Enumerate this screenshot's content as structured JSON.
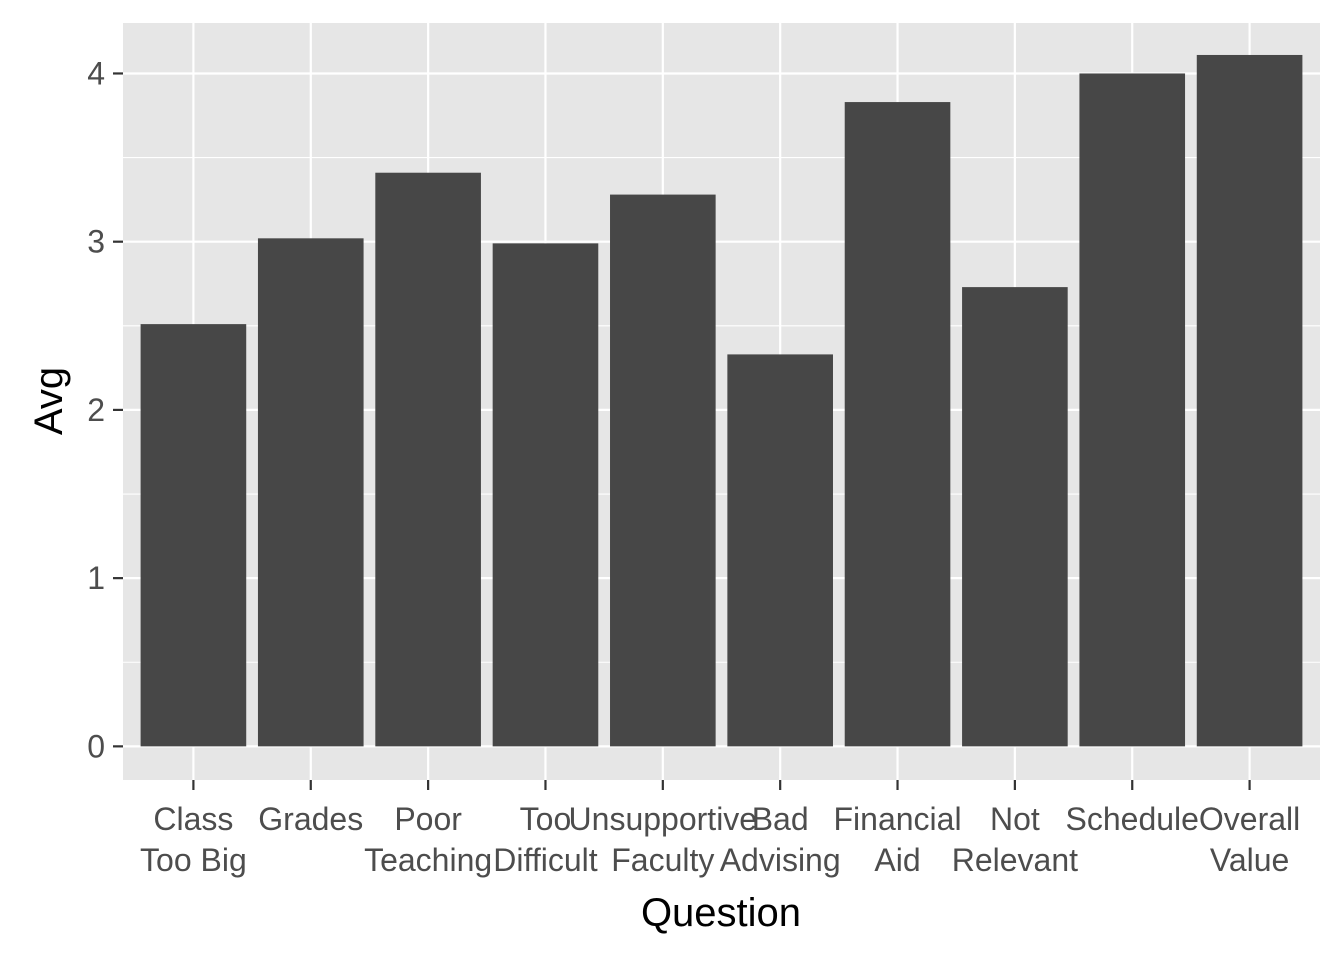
{
  "chart_data": {
    "type": "bar",
    "xlabel": "Question",
    "ylabel": "Avg",
    "categories": [
      [
        "Class",
        "Too Big"
      ],
      [
        "Grades"
      ],
      [
        "Poor",
        "Teaching"
      ],
      [
        "Too",
        "Difficult"
      ],
      [
        "Unsupportive",
        "Faculty"
      ],
      [
        "Bad",
        "Advising"
      ],
      [
        "Financial",
        "Aid"
      ],
      [
        "Not",
        "Relevant"
      ],
      [
        "Schedule"
      ],
      [
        "Overall",
        "Value"
      ]
    ],
    "values": [
      2.51,
      3.02,
      3.41,
      2.99,
      3.28,
      2.33,
      3.83,
      2.73,
      4.0,
      4.11
    ],
    "ylim": [
      -0.2,
      4.3
    ],
    "yticks": [
      0,
      1,
      2,
      3,
      4
    ],
    "grid": true,
    "colors": {
      "bar": "#474747",
      "panel": "#e6e6e6",
      "grid": "#ffffff",
      "tick": "#333333",
      "tick_label": "#4d4d4d"
    }
  }
}
